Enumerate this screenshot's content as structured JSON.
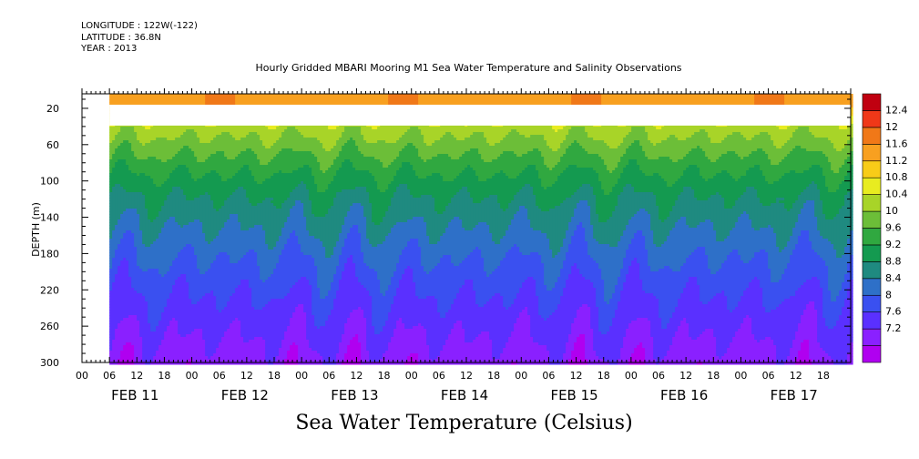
{
  "header": {
    "longitude": "LONGITUDE : 122W(-122)",
    "latitude": "LATITUDE : 36.8N",
    "year": "YEAR : 2013"
  },
  "title": "Hourly Gridded MBARI Mooring M1 Sea Water Temperature and Salinity Observations",
  "bottom_title": "Sea Water Temperature (Celsius)",
  "chart_data": {
    "type": "heatmap",
    "title": "Hourly Gridded MBARI Mooring M1 Sea Water Temperature and Salinity Observations",
    "xlabel": "",
    "ylabel": "DEPTH (m)",
    "colorbar_label": "Sea Water Temperature (Celsius)",
    "y_reversed": true,
    "ylim": [
      300,
      4
    ],
    "y_ticks": [
      20,
      60,
      100,
      140,
      180,
      220,
      260,
      300
    ],
    "x_hours_range": [
      0,
      168
    ],
    "x_hour_ticks": [
      "00",
      "06",
      "12",
      "18",
      "00",
      "06",
      "12",
      "18",
      "00",
      "06",
      "12",
      "18",
      "00",
      "06",
      "12",
      "18",
      "00",
      "06",
      "12",
      "18",
      "00",
      "06",
      "12",
      "18",
      "00",
      "06",
      "12",
      "18"
    ],
    "x_day_labels": [
      "FEB 11",
      "FEB 12",
      "FEB 13",
      "FEB 14",
      "FEB 15",
      "FEB 16",
      "FEB 17"
    ],
    "data_start_hour": 6,
    "levels": [
      7.2,
      7.6,
      8,
      8.4,
      8.8,
      9.2,
      9.6,
      10,
      10.4,
      10.8,
      11.2,
      11.6,
      12,
      12.4
    ],
    "level_colors": [
      "#b000f0",
      "#8a20ff",
      "#5a30ff",
      "#3a50f0",
      "#2e70c8",
      "#1f8a80",
      "#149a50",
      "#30a840",
      "#6cbe38",
      "#a8d428",
      "#e8ec20",
      "#f8cc18",
      "#f8a020",
      "#f07818",
      "#f03818",
      "#c00010"
    ],
    "colorbar_labels": [
      "12.4",
      "12",
      "11.6",
      "11.2",
      "10.8",
      "10.4",
      "10",
      "9.6",
      "9.2",
      "8.8",
      "8.4",
      "8",
      "7.6",
      "7.2"
    ],
    "profile": [
      {
        "depth": 10,
        "temp": 11.8
      },
      {
        "depth": 40,
        "temp": 10.6
      },
      {
        "depth": 60,
        "temp": 10.2
      },
      {
        "depth": 80,
        "temp": 9.8
      },
      {
        "depth": 100,
        "temp": 9.45
      },
      {
        "depth": 120,
        "temp": 9.15
      },
      {
        "depth": 150,
        "temp": 8.8
      },
      {
        "depth": 180,
        "temp": 8.45
      },
      {
        "depth": 220,
        "temp": 8.05
      },
      {
        "depth": 260,
        "temp": 7.7
      },
      {
        "depth": 300,
        "temp": 7.35
      }
    ],
    "missing_depth_range": [
      16,
      39
    ]
  }
}
